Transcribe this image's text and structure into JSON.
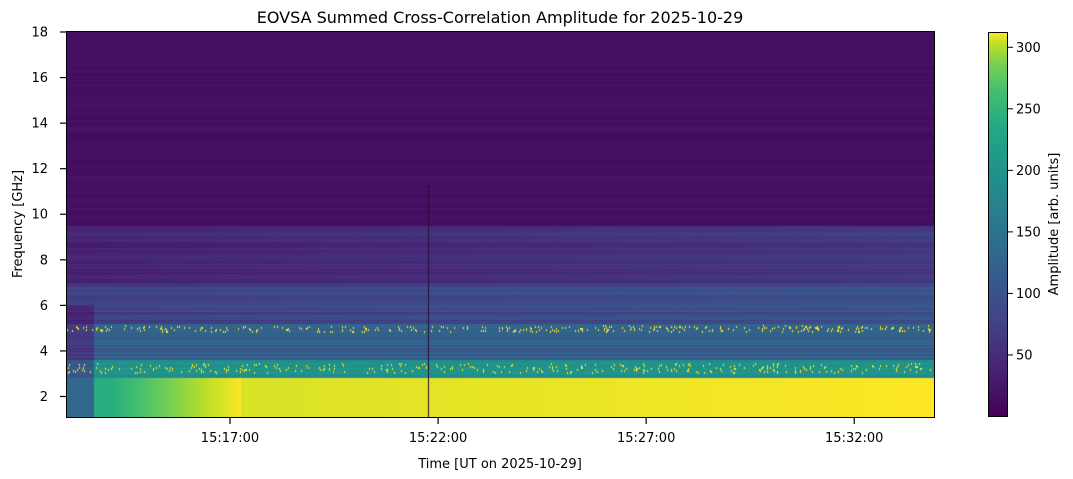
{
  "chart_data": {
    "type": "heatmap",
    "title": "EOVSA Summed Cross-Correlation Amplitude for 2025-10-29",
    "xlabel": "Time [UT on 2025-10-29]",
    "ylabel": "Frequency [GHz]",
    "x_ticks": [
      "15:17:00",
      "15:22:00",
      "15:27:00",
      "15:32:00"
    ],
    "x_range": [
      "15:13:05",
      "15:33:55"
    ],
    "y_ticks": [
      2,
      4,
      6,
      8,
      10,
      12,
      14,
      16,
      18
    ],
    "ylim": [
      1.1,
      18.0
    ],
    "colorbar": {
      "label": "Amplitude [arb. units]",
      "ticks": [
        50,
        100,
        150,
        200,
        250,
        300
      ],
      "range": [
        0,
        312
      ],
      "colormap": "viridis"
    },
    "grid": false
  }
}
